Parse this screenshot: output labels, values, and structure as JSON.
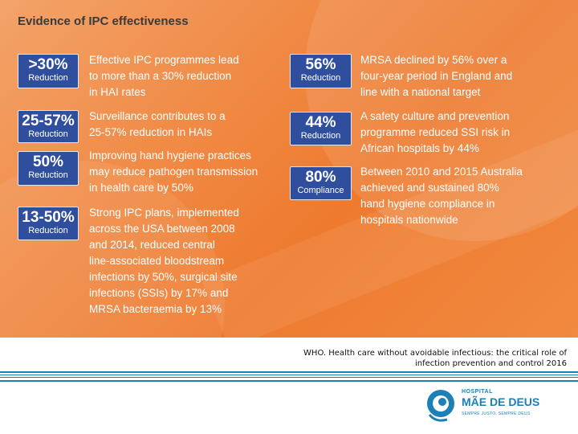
{
  "slide": {
    "title": "Evidence of IPC effectiveness",
    "left": [
      {
        "num": ">30%",
        "label": "Reduction",
        "text": [
          "Effective IPC programmes lead",
          "to more than a 30% reduction",
          "in HAI rates"
        ]
      },
      {
        "num": "25-57%",
        "label": "Reduction",
        "text": [
          "Surveillance contributes to a",
          "25-57% reduction in HAIs"
        ]
      },
      {
        "num": "50%",
        "label": "Reduction",
        "text": [
          "Improving hand hygiene practices",
          "may reduce pathogen transmission",
          "in health care by 50%"
        ]
      },
      {
        "num": "13-50%",
        "label": "Reduction",
        "text": [
          "Strong IPC plans, implemented",
          "across the USA between 2008",
          "and 2014, reduced central",
          "line-associated bloodstream",
          "infections by 50%, surgical site",
          "infections (SSIs) by 17% and",
          "MRSA bacteraemia by 13%"
        ]
      }
    ],
    "right": [
      {
        "num": "56%",
        "label": "Reduction",
        "text": [
          "MRSA declined by 56% over a",
          "four-year period in England and",
          "line with a national target"
        ]
      },
      {
        "num": "44%",
        "label": "Reduction",
        "text": [
          "A safety culture and prevention",
          "programme reduced SSI risk in",
          "African hospitals by 44%"
        ]
      },
      {
        "num": "80%",
        "label": "Compliance",
        "text": [
          "Between 2010 and 2015 Australia",
          "achieved and sustained 80%",
          "hand hygiene compliance in",
          "hospitals nationwide"
        ]
      }
    ]
  },
  "source": {
    "line1": "WHO. Health care without avoidable infectious: the critical role of",
    "line2": "infection prevention and control 2016"
  },
  "logo": {
    "line1": "HOSPITAL",
    "line2": "MÃE DE DEUS",
    "line3": "SEMPRE JUSTO. SEMPRE DEUS"
  },
  "colors": {
    "badge": "#2f4f9e",
    "background": "#ef8038",
    "stripe": "#1b7fb8"
  }
}
